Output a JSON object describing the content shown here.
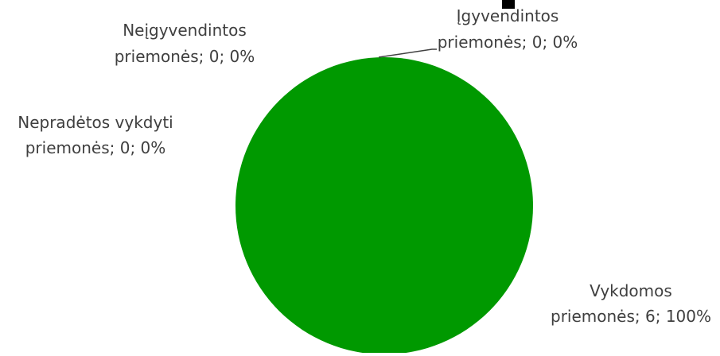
{
  "chart_data": {
    "type": "pie",
    "categories": [
      "Įgyvendintos priemonės",
      "Vykdomos priemonės",
      "Nepradėtos vykdyti priemonės",
      "Neįgyvendintos priemonės"
    ],
    "values": [
      0,
      6,
      0,
      0
    ],
    "percent_labels": [
      "0%",
      "100%",
      "0%",
      "0%"
    ],
    "colors": [
      "#1f7a1f",
      "#009900",
      "#c00000",
      "#ff9900"
    ],
    "labels": [
      {
        "line1": "Įgyvendintos",
        "line2": "priemonės; 0; 0%"
      },
      {
        "line1": "Vykdomos",
        "line2": "priemonės; 6; 100%"
      },
      {
        "line1": "Nepradėtos vykdyti",
        "line2": "priemonės; 0; 0%"
      },
      {
        "line1": "Neįgyvendintos",
        "line2": "priemonės; 0; 0%"
      }
    ],
    "legend": "none"
  }
}
